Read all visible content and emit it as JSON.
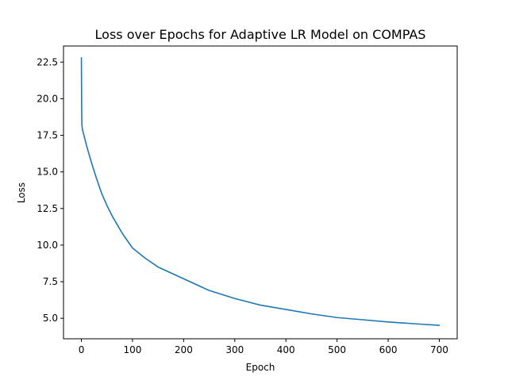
{
  "chart_data": {
    "type": "line",
    "title": "Loss over Epochs for Adaptive LR Model on COMPAS",
    "xlabel": "Epoch",
    "ylabel": "Loss",
    "xlim": [
      -35,
      735
    ],
    "ylim": [
      3.6,
      23.6
    ],
    "xticks": [
      0,
      100,
      200,
      300,
      400,
      500,
      600,
      700
    ],
    "xtick_labels": [
      "0",
      "100",
      "200",
      "300",
      "400",
      "500",
      "600",
      "700"
    ],
    "yticks": [
      5.0,
      7.5,
      10.0,
      12.5,
      15.0,
      17.5,
      20.0,
      22.5
    ],
    "ytick_labels": [
      "5.0",
      "7.5",
      "10.0",
      "12.5",
      "15.0",
      "17.5",
      "20.0",
      "22.5"
    ],
    "grid": false,
    "series": [
      {
        "color": "#1f77b4",
        "x": [
          0,
          0.5,
          1,
          2,
          5,
          10,
          20,
          30,
          40,
          50,
          60,
          70,
          80,
          90,
          100,
          125,
          150,
          175,
          200,
          250,
          300,
          350,
          400,
          450,
          500,
          550,
          600,
          650,
          700
        ],
        "y": [
          22.8,
          19.5,
          18.2,
          17.9,
          17.5,
          16.8,
          15.6,
          14.5,
          13.5,
          12.7,
          12.0,
          11.4,
          10.8,
          10.3,
          9.8,
          9.1,
          8.5,
          8.1,
          7.7,
          6.9,
          6.35,
          5.9,
          5.6,
          5.3,
          5.05,
          4.9,
          4.75,
          4.63,
          4.52
        ]
      }
    ]
  }
}
